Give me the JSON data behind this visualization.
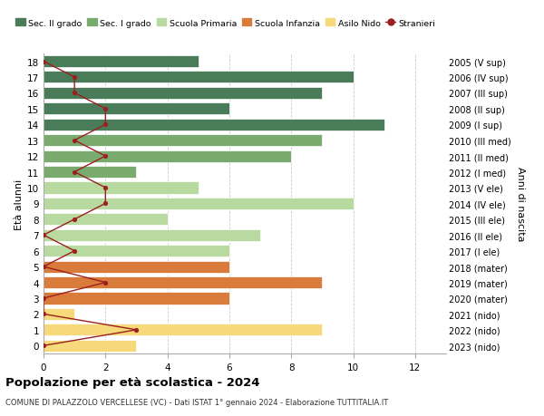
{
  "ages": [
    18,
    17,
    16,
    15,
    14,
    13,
    12,
    11,
    10,
    9,
    8,
    7,
    6,
    5,
    4,
    3,
    2,
    1,
    0
  ],
  "years": [
    "2005 (V sup)",
    "2006 (IV sup)",
    "2007 (III sup)",
    "2008 (II sup)",
    "2009 (I sup)",
    "2010 (III med)",
    "2011 (II med)",
    "2012 (I med)",
    "2013 (V ele)",
    "2014 (IV ele)",
    "2015 (III ele)",
    "2016 (II ele)",
    "2017 (I ele)",
    "2018 (mater)",
    "2019 (mater)",
    "2020 (mater)",
    "2021 (nido)",
    "2022 (nido)",
    "2023 (nido)"
  ],
  "bar_values": [
    5,
    10,
    9,
    6,
    11,
    9,
    8,
    3,
    5,
    10,
    4,
    7,
    6,
    6,
    9,
    6,
    1,
    9,
    3
  ],
  "bar_colors": [
    "#4a7c59",
    "#4a7c59",
    "#4a7c59",
    "#4a7c59",
    "#4a7c59",
    "#7aab6e",
    "#7aab6e",
    "#7aab6e",
    "#b8d9a0",
    "#b8d9a0",
    "#b8d9a0",
    "#b8d9a0",
    "#b8d9a0",
    "#d97b3a",
    "#d97b3a",
    "#d97b3a",
    "#f5d97a",
    "#f5d97a",
    "#f5d97a"
  ],
  "stranieri_values": [
    0,
    1,
    1,
    2,
    2,
    1,
    2,
    1,
    2,
    2,
    1,
    0,
    1,
    0,
    2,
    0,
    0,
    3,
    0
  ],
  "title": "Popolazione per età scolastica - 2024",
  "subtitle": "COMUNE DI PALAZZOLO VERCELLESE (VC) - Dati ISTAT 1° gennaio 2024 - Elaborazione TUTTITALIA.IT",
  "ylabel_left": "Età alunni",
  "ylabel_right": "Anni di nascita",
  "xlim": [
    0,
    13
  ],
  "xticks": [
    0,
    2,
    4,
    6,
    8,
    10,
    12
  ],
  "legend_labels": [
    "Sec. II grado",
    "Sec. I grado",
    "Scuola Primaria",
    "Scuola Infanzia",
    "Asilo Nido",
    "Stranieri"
  ],
  "legend_colors": [
    "#4a7c59",
    "#7aab6e",
    "#b8d9a0",
    "#d97b3a",
    "#f5d97a",
    "#9b2020"
  ],
  "bar_height": 0.75,
  "stranieri_color": "#9b2020",
  "grid_color": "#cccccc",
  "bg_color": "#ffffff"
}
